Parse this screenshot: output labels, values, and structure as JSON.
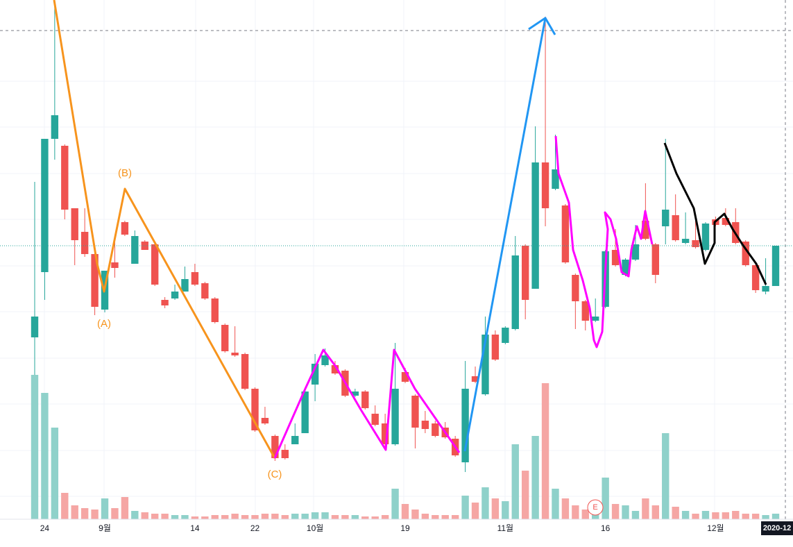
{
  "chart_data": {
    "type": "candlestick",
    "categories": [
      null,
      "24",
      null,
      null,
      null,
      null,
      null,
      "9월",
      null,
      null,
      null,
      null,
      null,
      null,
      null,
      null,
      "14",
      null,
      null,
      null,
      null,
      null,
      "22",
      null,
      null,
      null,
      null,
      null,
      "10월",
      null,
      null,
      null,
      null,
      null,
      null,
      null,
      null,
      "19",
      null,
      null,
      null,
      null,
      null,
      null,
      null,
      null,
      null,
      "11월",
      null,
      null,
      null,
      null,
      null,
      null,
      null,
      null,
      null,
      "16",
      null,
      null,
      null,
      null,
      null,
      null,
      null,
      null,
      null,
      null,
      "12월",
      null,
      null,
      null,
      null,
      null,
      null
    ],
    "open": [
      262,
      356,
      548,
      538,
      448,
      414,
      382,
      302,
      370,
      428,
      368,
      400,
      396,
      316,
      318,
      328,
      356,
      340,
      318,
      280,
      240,
      238,
      188,
      146,
      120,
      100,
      108,
      124,
      194,
      222,
      222,
      214,
      178,
      184,
      152,
      138,
      108,
      212,
      178,
      142,
      138,
      132,
      116,
      82,
      206,
      180,
      266,
      254,
      274,
      394,
      332,
      514,
      476,
      452,
      352,
      314,
      286,
      306,
      388,
      352,
      374,
      430,
      396,
      422,
      438,
      398,
      402,
      388,
      432,
      434,
      428,
      400,
      366,
      328,
      336
    ],
    "high": [
      486,
      548,
      748,
      540,
      448,
      448,
      384,
      358,
      408,
      430,
      416,
      402,
      398,
      320,
      338,
      364,
      368,
      342,
      320,
      282,
      278,
      240,
      190,
      162,
      122,
      108,
      138,
      188,
      238,
      246,
      228,
      216,
      188,
      186,
      164,
      152,
      254,
      218,
      180,
      156,
      142,
      140,
      120,
      228,
      220,
      292,
      272,
      278,
      408,
      396,
      566,
      724,
      554,
      454,
      354,
      316,
      318,
      388,
      418,
      376,
      424,
      484,
      398,
      548,
      468,
      442,
      432,
      428,
      436,
      448,
      448,
      402,
      368,
      376,
      394
    ],
    "low": [
      208,
      316,
      518,
      432,
      366,
      378,
      294,
      298,
      348,
      408,
      368,
      388,
      336,
      304,
      316,
      328,
      336,
      316,
      282,
      240,
      234,
      186,
      126,
      136,
      84,
      86,
      108,
      124,
      170,
      220,
      208,
      176,
      176,
      158,
      134,
      104,
      106,
      196,
      102,
      124,
      118,
      116,
      90,
      68,
      196,
      178,
      228,
      252,
      272,
      288,
      332,
      422,
      474,
      368,
      274,
      272,
      284,
      304,
      364,
      350,
      372,
      402,
      340,
      396,
      400,
      396,
      390,
      386,
      422,
      422,
      396,
      364,
      326,
      324,
      336
    ],
    "close": [
      292,
      548,
      582,
      446,
      402,
      382,
      306,
      358,
      362,
      410,
      408,
      388,
      338,
      308,
      328,
      346,
      338,
      318,
      284,
      242,
      236,
      188,
      128,
      138,
      88,
      88,
      120,
      184,
      224,
      236,
      210,
      178,
      184,
      160,
      136,
      108,
      188,
      198,
      132,
      130,
      120,
      118,
      92,
      188,
      198,
      266,
      230,
      276,
      380,
      316,
      514,
      448,
      504,
      370,
      314,
      286,
      292,
      386,
      366,
      374,
      396,
      404,
      352,
      446,
      402,
      404,
      392,
      426,
      424,
      424,
      398,
      366,
      330,
      336,
      394
    ],
    "volume": [
      208,
      182,
      132,
      38,
      20,
      16,
      14,
      30,
      16,
      32,
      12,
      10,
      8,
      8,
      6,
      6,
      4,
      4,
      6,
      6,
      8,
      6,
      6,
      8,
      8,
      6,
      8,
      8,
      10,
      10,
      6,
      6,
      6,
      4,
      4,
      6,
      44,
      22,
      14,
      8,
      6,
      6,
      6,
      34,
      24,
      46,
      30,
      26,
      108,
      70,
      120,
      196,
      44,
      30,
      20,
      14,
      12,
      60,
      22,
      20,
      12,
      30,
      20,
      124,
      18,
      12,
      8,
      12,
      10,
      10,
      12,
      8,
      8,
      6,
      8
    ],
    "ylim": [
      0,
      748
    ],
    "vlim": [
      0,
      748
    ],
    "up_color": "#26a69a",
    "down_color": "#ef5350",
    "volume_up_color": "#8fd1ca",
    "volume_down_color": "#f5a6a4",
    "annotations": [
      "(A)",
      "(B)",
      "(C)",
      "E"
    ],
    "crosshair_label": "2020-12"
  }
}
